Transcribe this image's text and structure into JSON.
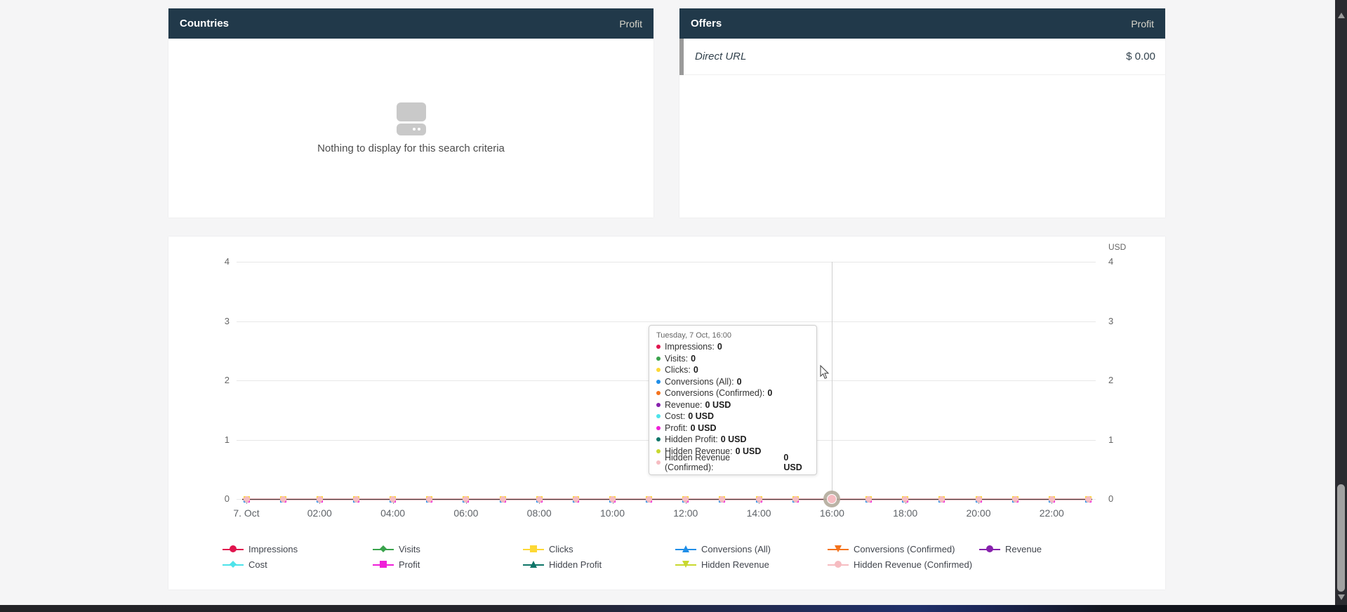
{
  "colors": {
    "header_bg": "#21394a",
    "header_metric_text": "#d9d6cb",
    "page_bg": "#f5f5f6",
    "grid_line": "#e7e7e7",
    "crosshair": "#cfcfcf",
    "dark_line_core": "#3b3b3b"
  },
  "countries_panel": {
    "title": "Countries",
    "metric_header": "Profit",
    "empty_text": "Nothing to display for this search criteria"
  },
  "offers_panel": {
    "title": "Offers",
    "metric_header": "Profit",
    "rows": [
      {
        "name": "Direct URL",
        "value": "$ 0.00"
      }
    ]
  },
  "chart_data": {
    "type": "line",
    "title": "",
    "categories": [
      "00:00",
      "01:00",
      "02:00",
      "03:00",
      "04:00",
      "05:00",
      "06:00",
      "07:00",
      "08:00",
      "09:00",
      "10:00",
      "11:00",
      "12:00",
      "13:00",
      "14:00",
      "15:00",
      "16:00",
      "17:00",
      "18:00",
      "19:00",
      "20:00",
      "21:00",
      "22:00",
      "23:00"
    ],
    "x_tick_labels": [
      "7. Oct",
      "02:00",
      "04:00",
      "06:00",
      "08:00",
      "10:00",
      "12:00",
      "14:00",
      "16:00",
      "18:00",
      "20:00",
      "22:00"
    ],
    "yaxis": {
      "ticks": [
        4,
        3,
        2,
        1,
        0
      ],
      "ylim": [
        0,
        4
      ],
      "right_title": "USD"
    },
    "grid": true,
    "legend_position": "bottom",
    "hovered_index": 16,
    "series": [
      {
        "name": "Impressions",
        "color": "#e0154e",
        "marker": "circle",
        "values": [
          0,
          0,
          0,
          0,
          0,
          0,
          0,
          0,
          0,
          0,
          0,
          0,
          0,
          0,
          0,
          0,
          0,
          0,
          0,
          0,
          0,
          0,
          0,
          0
        ]
      },
      {
        "name": "Visits",
        "color": "#3aa34c",
        "marker": "diamond",
        "values": [
          0,
          0,
          0,
          0,
          0,
          0,
          0,
          0,
          0,
          0,
          0,
          0,
          0,
          0,
          0,
          0,
          0,
          0,
          0,
          0,
          0,
          0,
          0,
          0
        ]
      },
      {
        "name": "Clicks",
        "color": "#fdd835",
        "marker": "square",
        "values": [
          0,
          0,
          0,
          0,
          0,
          0,
          0,
          0,
          0,
          0,
          0,
          0,
          0,
          0,
          0,
          0,
          0,
          0,
          0,
          0,
          0,
          0,
          0,
          0
        ]
      },
      {
        "name": "Conversions (All)",
        "color": "#1f8ee8",
        "marker": "tri-up",
        "values": [
          0,
          0,
          0,
          0,
          0,
          0,
          0,
          0,
          0,
          0,
          0,
          0,
          0,
          0,
          0,
          0,
          0,
          0,
          0,
          0,
          0,
          0,
          0,
          0
        ]
      },
      {
        "name": "Conversions (Confirmed)",
        "color": "#f4731d",
        "marker": "tri-down",
        "values": [
          0,
          0,
          0,
          0,
          0,
          0,
          0,
          0,
          0,
          0,
          0,
          0,
          0,
          0,
          0,
          0,
          0,
          0,
          0,
          0,
          0,
          0,
          0,
          0
        ]
      },
      {
        "name": "Revenue",
        "color": "#8721ad",
        "marker": "circle",
        "values": [
          0,
          0,
          0,
          0,
          0,
          0,
          0,
          0,
          0,
          0,
          0,
          0,
          0,
          0,
          0,
          0,
          0,
          0,
          0,
          0,
          0,
          0,
          0,
          0
        ]
      },
      {
        "name": "Cost",
        "color": "#4de3ea",
        "marker": "diamond",
        "values": [
          0,
          0,
          0,
          0,
          0,
          0,
          0,
          0,
          0,
          0,
          0,
          0,
          0,
          0,
          0,
          0,
          0,
          0,
          0,
          0,
          0,
          0,
          0,
          0
        ]
      },
      {
        "name": "Profit",
        "color": "#ef1fd8",
        "marker": "square",
        "values": [
          0,
          0,
          0,
          0,
          0,
          0,
          0,
          0,
          0,
          0,
          0,
          0,
          0,
          0,
          0,
          0,
          0,
          0,
          0,
          0,
          0,
          0,
          0,
          0
        ]
      },
      {
        "name": "Hidden Profit",
        "color": "#0e7568",
        "marker": "tri-up",
        "values": [
          0,
          0,
          0,
          0,
          0,
          0,
          0,
          0,
          0,
          0,
          0,
          0,
          0,
          0,
          0,
          0,
          0,
          0,
          0,
          0,
          0,
          0,
          0,
          0
        ]
      },
      {
        "name": "Hidden Revenue",
        "color": "#c8d82f",
        "marker": "tri-down",
        "values": [
          0,
          0,
          0,
          0,
          0,
          0,
          0,
          0,
          0,
          0,
          0,
          0,
          0,
          0,
          0,
          0,
          0,
          0,
          0,
          0,
          0,
          0,
          0,
          0
        ]
      },
      {
        "name": "Hidden Revenue (Confirmed)",
        "color": "#f6bcc1",
        "marker": "circle",
        "values": [
          0,
          0,
          0,
          0,
          0,
          0,
          0,
          0,
          0,
          0,
          0,
          0,
          0,
          0,
          0,
          0,
          0,
          0,
          0,
          0,
          0,
          0,
          0,
          0
        ]
      }
    ]
  },
  "tooltip": {
    "header": "Tuesday, 7 Oct, 16:00",
    "rows": [
      {
        "label": "Impressions",
        "value": "0",
        "color": "#e0154e"
      },
      {
        "label": "Visits",
        "value": "0",
        "color": "#3aa34c"
      },
      {
        "label": "Clicks",
        "value": "0",
        "color": "#fdd835"
      },
      {
        "label": "Conversions (All)",
        "value": "0",
        "color": "#1f8ee8"
      },
      {
        "label": "Conversions (Confirmed)",
        "value": "0",
        "color": "#f4731d"
      },
      {
        "label": "Revenue",
        "value": "0 USD",
        "color": "#8721ad"
      },
      {
        "label": "Cost",
        "value": "0 USD",
        "color": "#4de3ea"
      },
      {
        "label": "Profit",
        "value": "0 USD",
        "color": "#ef1fd8"
      },
      {
        "label": "Hidden Profit",
        "value": "0 USD",
        "color": "#0e7568"
      },
      {
        "label": "Hidden Revenue",
        "value": "0 USD",
        "color": "#c8d82f"
      },
      {
        "label": "Hidden Revenue (Confirmed)",
        "value": "0 USD",
        "color": "#f6bcc1"
      }
    ]
  }
}
